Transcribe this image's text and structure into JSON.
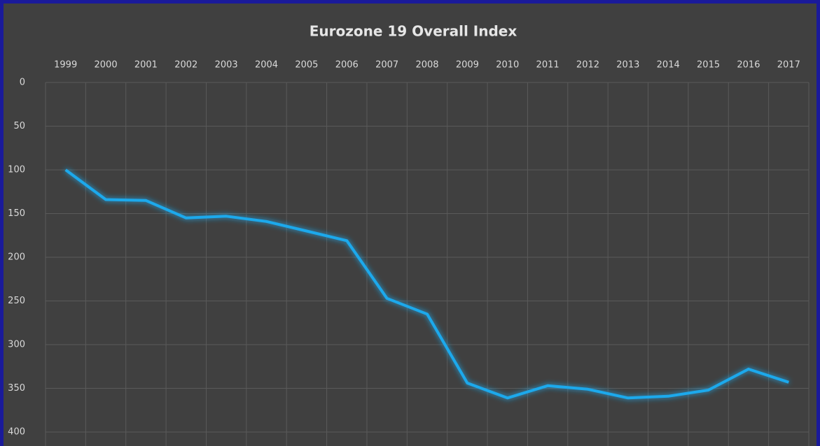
{
  "chart_data": {
    "type": "line",
    "title": "Eurozone 19 Overall Index",
    "categories": [
      "1999",
      "2000",
      "2001",
      "2002",
      "2003",
      "2004",
      "2005",
      "2006",
      "2007",
      "2008",
      "2009",
      "2010",
      "2011",
      "2012",
      "2013",
      "2014",
      "2015",
      "2016",
      "2017"
    ],
    "values": [
      100,
      134,
      135,
      155,
      153,
      159,
      170,
      181,
      247,
      265,
      344,
      361,
      347,
      351,
      361,
      359,
      352,
      328,
      343
    ],
    "color": "#1ea9ec",
    "ylim": [
      0,
      400
    ],
    "yticks": [
      0,
      50,
      100,
      150,
      200,
      250,
      300,
      350,
      400
    ],
    "y_inverted": true,
    "grid": true
  }
}
